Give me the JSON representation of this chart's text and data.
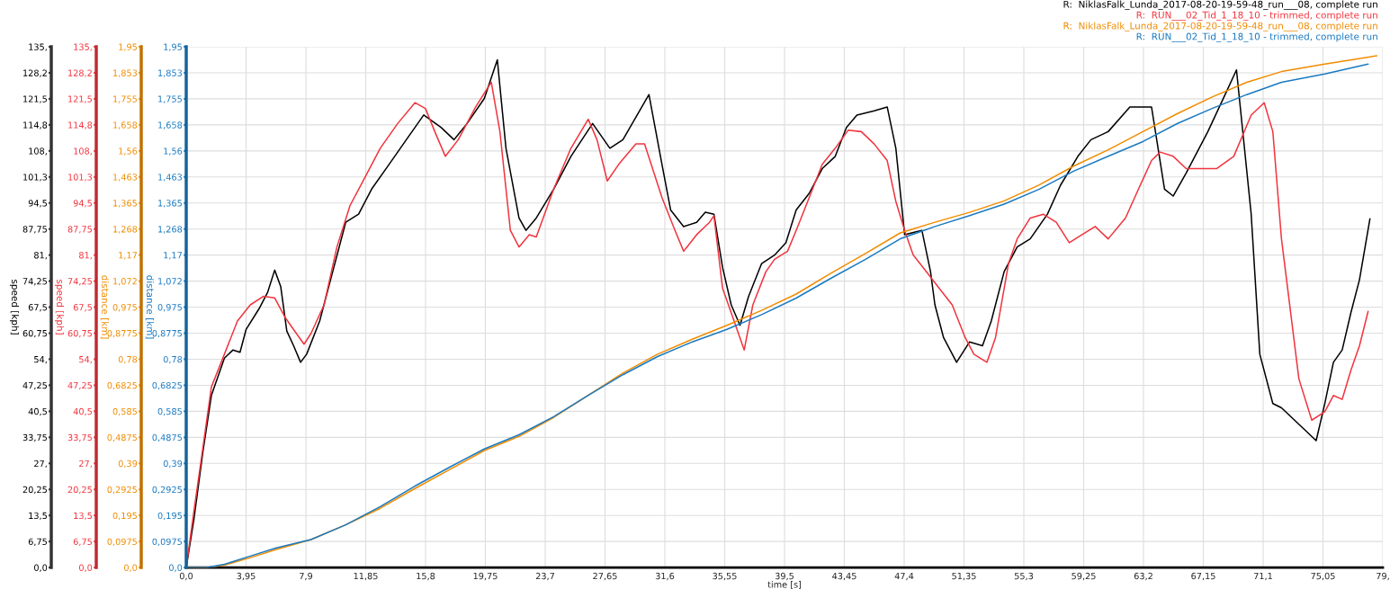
{
  "chart_data": {
    "type": "line",
    "xlabel": "time [s]",
    "ylabel": "speed [kph]",
    "y2label": "speed [kph]",
    "y3label": "distance [km]",
    "xlim": [
      0,
      79
    ],
    "xticks": [
      {
        "value": 0,
        "label": "0,0"
      },
      {
        "value": 3.95,
        "label": "3,95"
      },
      {
        "value": 7.9,
        "label": "7,9"
      },
      {
        "value": 11.85,
        "label": "11,85"
      },
      {
        "value": 15.8,
        "label": "15,8"
      },
      {
        "value": 19.75,
        "label": "19,75"
      },
      {
        "value": 23.7,
        "label": "23,7"
      },
      {
        "value": 27.65,
        "label": "27,65"
      },
      {
        "value": 31.6,
        "label": "31,6"
      },
      {
        "value": 35.55,
        "label": "35,55"
      },
      {
        "value": 39.5,
        "label": "39,5"
      },
      {
        "value": 43.45,
        "label": "43,45"
      },
      {
        "value": 47.4,
        "label": "47,4"
      },
      {
        "value": 51.35,
        "label": "51,35"
      },
      {
        "value": 55.3,
        "label": "55,3"
      },
      {
        "value": 59.25,
        "label": "59,25"
      },
      {
        "value": 63.2,
        "label": "63,2"
      },
      {
        "value": 67.15,
        "label": "67,15"
      },
      {
        "value": 71.1,
        "label": "71,1"
      },
      {
        "value": 75.05,
        "label": "75,05"
      },
      {
        "value": 79,
        "label": "79,"
      }
    ],
    "ylim": [
      0,
      135
    ],
    "yticks": [
      {
        "value": 0,
        "label": "0,0"
      },
      {
        "value": 6.75,
        "label": "6,75"
      },
      {
        "value": 13.5,
        "label": "13,5"
      },
      {
        "value": 20.25,
        "label": "20,25"
      },
      {
        "value": 27,
        "label": "27,"
      },
      {
        "value": 33.75,
        "label": "33,75"
      },
      {
        "value": 40.5,
        "label": "40,5"
      },
      {
        "value": 47.25,
        "label": "47,25"
      },
      {
        "value": 54,
        "label": "54,"
      },
      {
        "value": 60.75,
        "label": "60,75"
      },
      {
        "value": 67.5,
        "label": "67,5"
      },
      {
        "value": 74.25,
        "label": "74,25"
      },
      {
        "value": 81,
        "label": "81,"
      },
      {
        "value": 87.75,
        "label": "87,75"
      },
      {
        "value": 94.5,
        "label": "94,5"
      },
      {
        "value": 101.25,
        "label": "101,3"
      },
      {
        "value": 108,
        "label": "108,"
      },
      {
        "value": 114.75,
        "label": "114,8"
      },
      {
        "value": 121.5,
        "label": "121,5"
      },
      {
        "value": 128.25,
        "label": "128,2"
      },
      {
        "value": 135,
        "label": "135,"
      }
    ],
    "y2lim": [
      0,
      135
    ],
    "y2ticks": [
      {
        "value": 0,
        "label": "0,0"
      },
      {
        "value": 6.75,
        "label": "6,75"
      },
      {
        "value": 13.5,
        "label": "13,5"
      },
      {
        "value": 20.25,
        "label": "20,25"
      },
      {
        "value": 27,
        "label": "27,"
      },
      {
        "value": 33.75,
        "label": "33,75"
      },
      {
        "value": 40.5,
        "label": "40,5"
      },
      {
        "value": 47.25,
        "label": "47,25"
      },
      {
        "value": 54,
        "label": "54,"
      },
      {
        "value": 60.75,
        "label": "60,75"
      },
      {
        "value": 67.5,
        "label": "67,5"
      },
      {
        "value": 74.25,
        "label": "74,25"
      },
      {
        "value": 81,
        "label": "81,"
      },
      {
        "value": 87.75,
        "label": "87,75"
      },
      {
        "value": 94.5,
        "label": "94,5"
      },
      {
        "value": 101.25,
        "label": "101,3"
      },
      {
        "value": 108,
        "label": "108,"
      },
      {
        "value": 114.75,
        "label": "114,8"
      },
      {
        "value": 121.5,
        "label": "121,5"
      },
      {
        "value": 128.25,
        "label": "128,2"
      },
      {
        "value": 135,
        "label": "135,"
      }
    ],
    "y3lim": [
      0,
      1.95
    ],
    "y3ticks": [
      {
        "value": 0,
        "label": "0,0"
      },
      {
        "value": 0.0975,
        "label": "0,0975"
      },
      {
        "value": 0.195,
        "label": "0,195"
      },
      {
        "value": 0.2925,
        "label": "0,2925"
      },
      {
        "value": 0.39,
        "label": "0,39"
      },
      {
        "value": 0.4875,
        "label": "0,4875"
      },
      {
        "value": 0.585,
        "label": "0,585"
      },
      {
        "value": 0.6825,
        "label": "0,6825"
      },
      {
        "value": 0.78,
        "label": "0,78"
      },
      {
        "value": 0.8775,
        "label": "0,8775"
      },
      {
        "value": 0.975,
        "label": "0,975"
      },
      {
        "value": 1.0725,
        "label": "1,072"
      },
      {
        "value": 1.17,
        "label": "1,17"
      },
      {
        "value": 1.2675,
        "label": "1,268"
      },
      {
        "value": 1.365,
        "label": "1,365"
      },
      {
        "value": 1.4625,
        "label": "1,463"
      },
      {
        "value": 1.56,
        "label": "1,56"
      },
      {
        "value": 1.6575,
        "label": "1,658"
      },
      {
        "value": 1.755,
        "label": "1,755"
      },
      {
        "value": 1.8525,
        "label": "1,853"
      },
      {
        "value": 1.95,
        "label": "1,95"
      }
    ],
    "grid": true,
    "legend": "top right",
    "marker": "none",
    "line_style": "solid",
    "series": [
      {
        "name": "R:  NiklasFalk_Lunda_2017-08-20-19-59-48_run___08, complete run",
        "color": "#000000",
        "axis": "y",
        "x": [
          0,
          0.51,
          1.09,
          1.66,
          2.52,
          3.09,
          3.55,
          3.95,
          4.81,
          5.38,
          5.84,
          6.24,
          6.64,
          7.09,
          7.55,
          7.95,
          8.81,
          9.67,
          10.53,
          11.38,
          12.24,
          13.39,
          14.53,
          15.68,
          16.82,
          17.68,
          18.54,
          19.68,
          20.54,
          21.11,
          21.97,
          22.43,
          23.11,
          24.26,
          25.4,
          26.83,
          27.97,
          28.83,
          30.55,
          31.41,
          31.98,
          32.84,
          33.7,
          34.27,
          34.84,
          35.41,
          35.98,
          36.56,
          37.13,
          37.99,
          38.84,
          39.59,
          40.27,
          41.13,
          41.99,
          42.85,
          43.59,
          44.28,
          45.42,
          46.28,
          46.85,
          47.43,
          48.57,
          49.14,
          49.43,
          50.0,
          50.86,
          51.72,
          52.57,
          53.15,
          54.0,
          54.86,
          55.72,
          56.86,
          57.72,
          58.87,
          59.73,
          60.87,
          62.3,
          63.73,
          64.59,
          65.16,
          66.02,
          67.45,
          68.59,
          69.34,
          70.31,
          70.88,
          71.74,
          72.31,
          73.74,
          74.6,
          75.17,
          75.74,
          76.32,
          76.89,
          77.46,
          78.15
        ],
        "values": [
          0,
          12.6,
          29.7,
          44.6,
          54.3,
          56.4,
          55.8,
          61.7,
          67.1,
          71.4,
          77.1,
          72.8,
          61.3,
          57.5,
          53.2,
          55.3,
          63.9,
          76.7,
          89.5,
          91.6,
          98.1,
          104.5,
          110.9,
          117.3,
          114.1,
          110.9,
          115.1,
          121.6,
          131.6,
          108.7,
          90.6,
          87.4,
          90.6,
          98.1,
          106.6,
          115.1,
          108.7,
          110.9,
          122.6,
          104.5,
          92.7,
          88.4,
          89.5,
          92.1,
          91.6,
          77.8,
          68.1,
          62.8,
          70.3,
          78.8,
          81.0,
          84.2,
          92.7,
          97.0,
          103.4,
          106.6,
          114.1,
          117.3,
          118.4,
          119.4,
          108.7,
          86.3,
          87.4,
          76.7,
          68.1,
          59.6,
          53.2,
          58.5,
          57.5,
          63.9,
          76.7,
          83.1,
          85.2,
          91.6,
          99.1,
          106.6,
          110.9,
          113.0,
          119.4,
          119.4,
          98.1,
          96.3,
          102.3,
          113.0,
          122.6,
          129.0,
          91.6,
          55.3,
          42.5,
          41.4,
          36.1,
          32.9,
          42.5,
          53.2,
          56.4,
          66.0,
          74.6,
          90.4
        ]
      },
      {
        "name": "R:  RUN___02_Tid_1_18_10 - trimmed, complete run",
        "color": "#f0353f",
        "axis": "y2",
        "x": [
          0,
          0.51,
          1.09,
          1.66,
          2.52,
          3.38,
          4.23,
          5.09,
          5.84,
          6.52,
          7.09,
          7.78,
          8.24,
          9.1,
          9.95,
          10.81,
          11.67,
          12.81,
          13.96,
          15.1,
          15.79,
          16.53,
          17.11,
          17.96,
          19.11,
          20.14,
          20.71,
          21.4,
          21.97,
          22.65,
          23.11,
          24.26,
          25.4,
          26.54,
          27.12,
          27.8,
          28.55,
          29.69,
          30.26,
          31.41,
          32.27,
          32.84,
          33.7,
          34.55,
          34.84,
          35.41,
          36.27,
          36.84,
          37.41,
          38.27,
          38.84,
          39.7,
          40.27,
          41.13,
          41.99,
          42.85,
          43.71,
          44.57,
          45.42,
          46.28,
          46.85,
          47.43,
          48.0,
          48.86,
          49.71,
          50.57,
          51.43,
          52.0,
          52.86,
          53.43,
          54.29,
          54.86,
          55.72,
          56.58,
          57.44,
          58.3,
          59.15,
          60.01,
          60.87,
          62.01,
          62.87,
          63.73,
          64.3,
          65.16,
          66.02,
          67.16,
          68.02,
          69.16,
          70.31,
          71.17,
          71.74,
          72.31,
          73.46,
          74.31,
          75.17,
          75.74,
          76.32,
          76.89,
          77.46,
          78.03
        ],
        "values": [
          0,
          14.7,
          30.8,
          46.8,
          55.3,
          63.9,
          68.1,
          70.3,
          69.9,
          64.9,
          61.7,
          57.9,
          60.7,
          68.1,
          83.1,
          93.8,
          100.2,
          108.7,
          115.1,
          120.5,
          119.0,
          111.9,
          106.6,
          110.9,
          119.4,
          125.8,
          113.0,
          87.4,
          83.1,
          86.3,
          85.7,
          98.1,
          108.7,
          116.2,
          110.9,
          100.2,
          104.5,
          109.8,
          109.8,
          95.9,
          87.4,
          82.0,
          86.3,
          89.5,
          91.2,
          72.4,
          62.8,
          56.4,
          68.1,
          76.7,
          79.9,
          82.0,
          87.4,
          95.9,
          104.5,
          108.7,
          113.4,
          113.0,
          109.8,
          105.5,
          94.9,
          87.4,
          81.0,
          76.7,
          72.4,
          68.1,
          59.6,
          55.3,
          53.2,
          59.6,
          78.8,
          85.2,
          90.6,
          91.6,
          89.5,
          84.2,
          86.3,
          88.4,
          85.2,
          90.6,
          98.1,
          105.5,
          107.7,
          106.6,
          103.4,
          103.4,
          103.4,
          106.6,
          117.3,
          120.5,
          113.0,
          85.2,
          48.9,
          38.2,
          40.4,
          44.6,
          43.6,
          51.1,
          57.5,
          66.4
        ]
      },
      {
        "name": "R:  NiklasFalk_Lunda_2017-08-20-19-59-48_run___08, complete run",
        "color": "#f08c00",
        "axis": "y3",
        "x": [
          0,
          1.37,
          2.52,
          4.23,
          5.95,
          8.24,
          10.53,
          12.81,
          15.1,
          17.39,
          19.68,
          21.97,
          24.26,
          26.54,
          28.83,
          31.12,
          33.41,
          35.7,
          37.99,
          40.27,
          42.56,
          44.85,
          47.14,
          49.43,
          51.72,
          54.0,
          56.29,
          58.58,
          60.87,
          63.16,
          65.45,
          67.73,
          70.02,
          72.31,
          75.17,
          78.6
        ],
        "values": [
          0,
          0,
          0.009,
          0.037,
          0.068,
          0.105,
          0.16,
          0.222,
          0.296,
          0.367,
          0.438,
          0.491,
          0.562,
          0.645,
          0.728,
          0.799,
          0.855,
          0.907,
          0.963,
          1.024,
          1.102,
          1.176,
          1.253,
          1.293,
          1.33,
          1.373,
          1.432,
          1.503,
          1.564,
          1.632,
          1.7,
          1.762,
          1.817,
          1.857,
          1.885,
          1.916
        ]
      },
      {
        "name": "R:  RUN___02_Tid_1_18_10 - trimmed, complete run",
        "color": "#1a7ac0",
        "axis": "y3",
        "x": [
          0,
          1.37,
          2.52,
          4.23,
          5.95,
          8.24,
          10.53,
          12.81,
          15.1,
          17.39,
          19.68,
          21.97,
          24.26,
          26.54,
          28.83,
          31.12,
          33.41,
          35.7,
          37.99,
          40.27,
          42.56,
          44.85,
          47.14,
          49.43,
          51.72,
          54.0,
          56.29,
          58.58,
          60.87,
          63.16,
          65.45,
          67.73,
          70.02,
          72.31,
          75.17,
          78.03
        ],
        "values": [
          0,
          0,
          0.012,
          0.043,
          0.074,
          0.105,
          0.16,
          0.228,
          0.305,
          0.376,
          0.444,
          0.497,
          0.565,
          0.645,
          0.722,
          0.79,
          0.845,
          0.892,
          0.947,
          1.009,
          1.083,
          1.154,
          1.231,
          1.277,
          1.318,
          1.361,
          1.416,
          1.484,
          1.54,
          1.595,
          1.663,
          1.719,
          1.771,
          1.817,
          1.848,
          1.885
        ]
      }
    ]
  }
}
